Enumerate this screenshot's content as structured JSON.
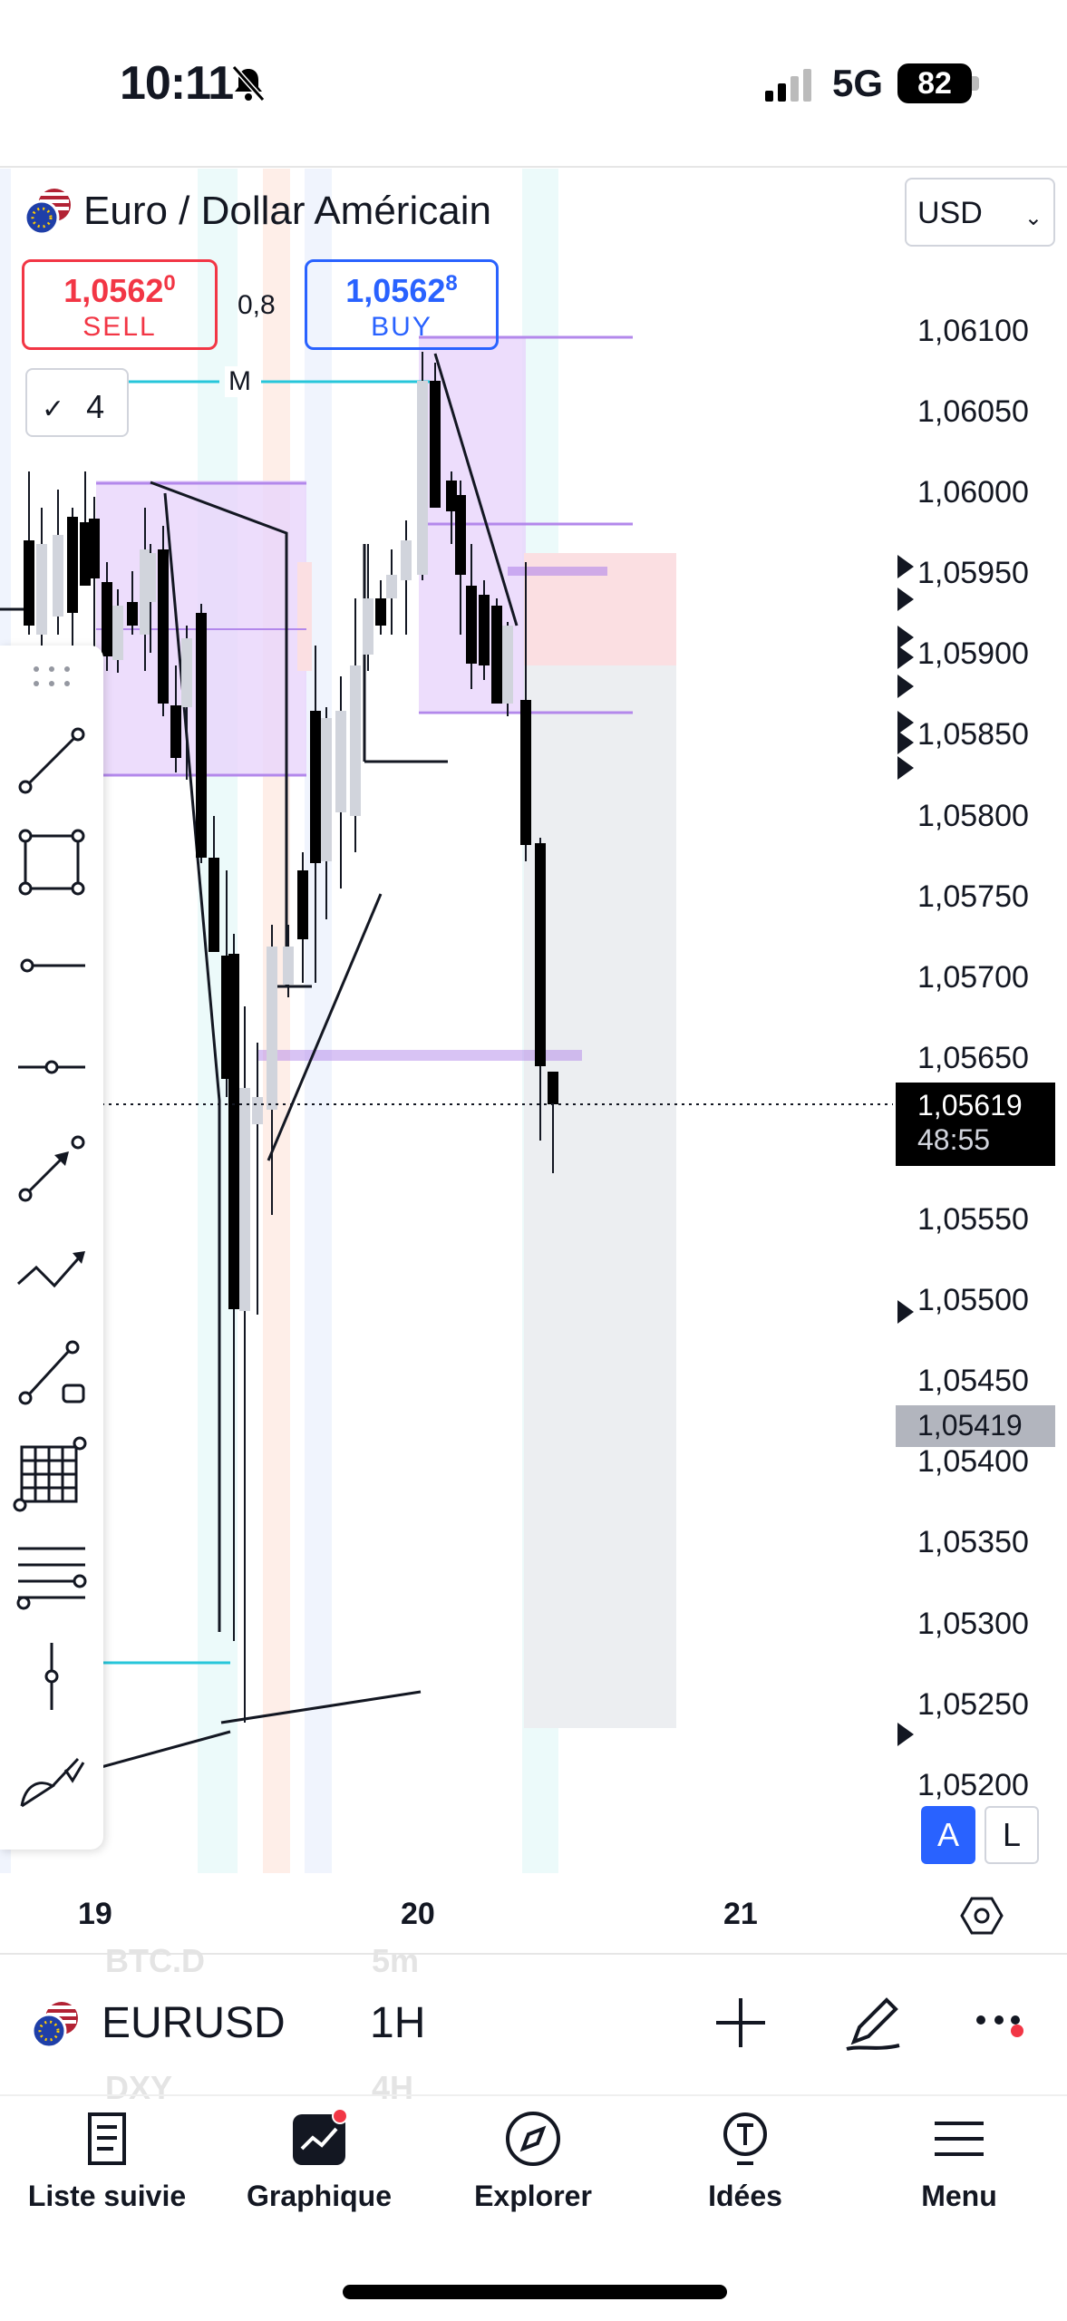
{
  "status_bar": {
    "time": "10:11",
    "network": "5G",
    "battery": "82"
  },
  "header": {
    "title": "Euro / Dollar Américain",
    "currency": "USD",
    "sell_price_main": "1,0562",
    "sell_price_sup": "0",
    "sell_label": "SELL",
    "buy_price_main": "1,0562",
    "buy_price_sup": "8",
    "buy_label": "BUY",
    "spread": "0,8",
    "collapse_count": "4",
    "level_marker": "M"
  },
  "price_axis": {
    "labels": [
      "1,06100",
      "1,06050",
      "1,06000",
      "1,05950",
      "1,05900",
      "1,05850",
      "1,05800",
      "1,05750",
      "1,05700",
      "1,05650",
      "1,05550",
      "1,05500",
      "1,05450",
      "1,05400",
      "1,05350",
      "1,05300",
      "1,05250",
      "1,05200"
    ],
    "current_price": "1,05619",
    "countdown": "48:55",
    "marked_price": "1,05419",
    "mode_auto": "A",
    "mode_log": "L"
  },
  "time_axis": {
    "labels": [
      "19",
      "20",
      "21"
    ]
  },
  "toolbar": {
    "tools": [
      "trend-line-icon",
      "rectangle-icon",
      "horizontal-ray-icon",
      "horizontal-line-icon",
      "arrow-icon",
      "path-icon",
      "measure-icon",
      "grid-icon",
      "fib-lines-icon",
      "vertical-line-icon",
      "brush-icon"
    ]
  },
  "symbol_bar": {
    "symbol": "EURUSD",
    "interval": "1H",
    "ghost_symbol_above": "BTC.D",
    "ghost_interval_above": "5m",
    "ghost_symbol_below": "DXY",
    "ghost_interval_below": "4H"
  },
  "bottom_nav": [
    {
      "label": "Liste suivie",
      "icon": "watchlist-icon"
    },
    {
      "label": "Graphique",
      "icon": "chart-icon"
    },
    {
      "label": "Explorer",
      "icon": "compass-icon"
    },
    {
      "label": "Idées",
      "icon": "ideas-icon"
    },
    {
      "label": "Menu",
      "icon": "menu-icon"
    }
  ],
  "colors": {
    "sell": "#f23645",
    "buy": "#2962ff",
    "zone": "#e1bee7",
    "bull_candle": "#d1d4dc",
    "bear_candle": "#000000"
  }
}
